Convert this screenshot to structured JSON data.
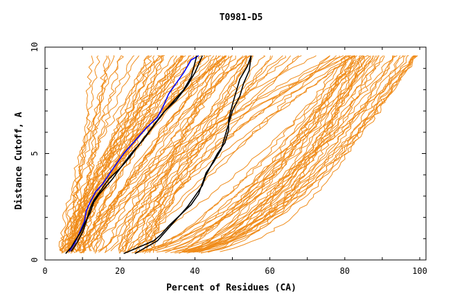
{
  "chart_data": {
    "type": "line",
    "title": "T0981-D5",
    "xlabel": "Percent of Residues (CA)",
    "ylabel": "Distance Cutoff, A",
    "xlim": [
      0,
      100
    ],
    "ylim": [
      0,
      10
    ],
    "x_ticks": [
      0,
      20,
      40,
      60,
      80,
      100
    ],
    "y_ticks": [
      0,
      5,
      10
    ],
    "background_series_color": "#f08c1a",
    "background_series_count": 120,
    "series": [
      {
        "color": "#0000ff",
        "points": [
          [
            6.5,
            0.4
          ],
          [
            8,
            0.8
          ],
          [
            9,
            1.2
          ],
          [
            10.5,
            1.8
          ],
          [
            11,
            2.3
          ],
          [
            12,
            2.7
          ],
          [
            13.5,
            3.2
          ],
          [
            15.5,
            3.6
          ],
          [
            17,
            4.0
          ],
          [
            19,
            4.5
          ],
          [
            21,
            5.0
          ],
          [
            24,
            5.6
          ],
          [
            27,
            6.2
          ],
          [
            30,
            6.7
          ],
          [
            31.5,
            7.2
          ],
          [
            33,
            7.8
          ],
          [
            35,
            8.3
          ],
          [
            37,
            8.8
          ],
          [
            39,
            9.4
          ],
          [
            41,
            9.6
          ]
        ]
      },
      {
        "color": "#000000",
        "points": [
          [
            7,
            0.4
          ],
          [
            8.5,
            0.8
          ],
          [
            10,
            1.3
          ],
          [
            11,
            1.8
          ],
          [
            12,
            2.4
          ],
          [
            13,
            2.8
          ],
          [
            15,
            3.3
          ],
          [
            17,
            3.8
          ],
          [
            20,
            4.3
          ],
          [
            23,
            5.0
          ],
          [
            26,
            5.6
          ],
          [
            29,
            6.3
          ],
          [
            32,
            7.0
          ],
          [
            35,
            7.5
          ],
          [
            38,
            8.2
          ],
          [
            40,
            8.8
          ],
          [
            42,
            9.6
          ]
        ]
      },
      {
        "color": "#000000",
        "points": [
          [
            5.5,
            0.3
          ],
          [
            7,
            0.6
          ],
          [
            8,
            0.9
          ],
          [
            9.5,
            1.3
          ],
          [
            10.5,
            1.7
          ],
          [
            12,
            2.2
          ],
          [
            13,
            2.7
          ],
          [
            14.5,
            3.1
          ],
          [
            16,
            3.4
          ],
          [
            18,
            3.8
          ],
          [
            20,
            4.3
          ],
          [
            22.5,
            4.8
          ],
          [
            25,
            5.4
          ],
          [
            28,
            6.1
          ],
          [
            31,
            6.8
          ],
          [
            34,
            7.4
          ],
          [
            37,
            8.0
          ],
          [
            39,
            8.6
          ],
          [
            40.5,
            9.6
          ]
        ]
      },
      {
        "color": "#000000",
        "points": [
          [
            21,
            0.3
          ],
          [
            25,
            0.6
          ],
          [
            29,
            0.9
          ],
          [
            31,
            1.2
          ],
          [
            33,
            1.6
          ],
          [
            36,
            2.1
          ],
          [
            38,
            2.5
          ],
          [
            40,
            3.0
          ],
          [
            42,
            3.5
          ],
          [
            43,
            4.0
          ],
          [
            44.5,
            4.5
          ],
          [
            46,
            5.0
          ],
          [
            48,
            5.5
          ],
          [
            49,
            6.1
          ],
          [
            49,
            6.6
          ],
          [
            50,
            7.3
          ],
          [
            51,
            7.9
          ],
          [
            52,
            8.5
          ],
          [
            54,
            9.1
          ],
          [
            55,
            9.6
          ]
        ]
      },
      {
        "color": "#000000",
        "points": [
          [
            24,
            0.3
          ],
          [
            27,
            0.6
          ],
          [
            30,
            0.9
          ],
          [
            32,
            1.3
          ],
          [
            34,
            1.7
          ],
          [
            36,
            2.1
          ],
          [
            39,
            2.6
          ],
          [
            41,
            3.1
          ],
          [
            42,
            3.6
          ],
          [
            43,
            4.1
          ],
          [
            45,
            4.6
          ],
          [
            47,
            5.2
          ],
          [
            48,
            5.8
          ],
          [
            49,
            6.4
          ],
          [
            50,
            7.0
          ],
          [
            52,
            7.7
          ],
          [
            53,
            8.3
          ],
          [
            54.5,
            8.9
          ],
          [
            55,
            9.6
          ]
        ]
      }
    ]
  }
}
